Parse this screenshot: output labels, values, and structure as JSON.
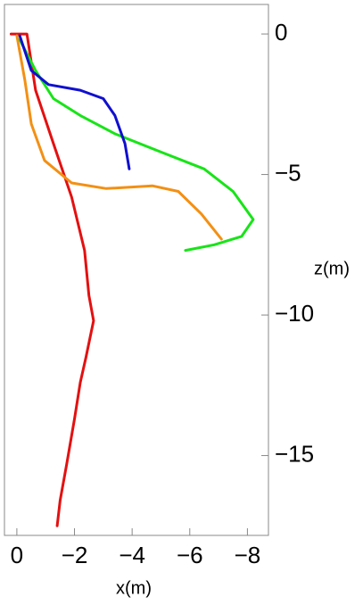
{
  "chart_data": {
    "type": "line",
    "x_label": "x(m)",
    "y_label": "z(m)",
    "xlim": [
      0.43,
      -8.73
    ],
    "ylim": [
      1.05,
      -17.84
    ],
    "xticks": [
      0,
      {
        "value": -2,
        "label": "−2"
      },
      {
        "value": -4,
        "label": "−4"
      },
      {
        "value": -6,
        "label": "−6"
      },
      {
        "value": -8,
        "label": "−8"
      }
    ],
    "yticks": [
      0,
      {
        "value": -5,
        "label": "−5"
      },
      {
        "value": -10,
        "label": "−10"
      },
      {
        "value": -15,
        "label": "−15"
      }
    ],
    "series": [
      {
        "color": "#e41010",
        "x": [
          0.2,
          -0.35,
          -0.65,
          -1.27,
          -1.9,
          -2.35,
          -2.5,
          -2.66,
          -2.4,
          -2.2,
          -2,
          -1.73,
          -1.5,
          -1.4
        ],
        "values": [
          0,
          0,
          -2,
          -3.9,
          -5.8,
          -7.7,
          -9.3,
          -10.2,
          -11.5,
          -12.4,
          -13.7,
          -15.3,
          -16.6,
          -17.5
        ]
      },
      {
        "color": "#f39014",
        "x": [
          0,
          -0.28,
          -0.5,
          -0.96,
          -1.9,
          -3.1,
          -4.7,
          -5.6,
          -6.4,
          -7.1
        ],
        "values": [
          -0.06,
          -1.65,
          -3.2,
          -4.5,
          -5.3,
          -5.5,
          -5.4,
          -5.6,
          -6.4,
          -7.3
        ]
      },
      {
        "color": "#18e418",
        "x": [
          -0.1,
          -0.65,
          -1.27,
          -2.2,
          -3.4,
          -5,
          -6.5,
          -7.5,
          -8.2,
          -7.8,
          -6.85,
          -5.85
        ],
        "values": [
          -0.2,
          -1.3,
          -2.3,
          -2.9,
          -3.55,
          -4.2,
          -4.8,
          -5.6,
          -6.6,
          -7.2,
          -7.5,
          -7.7
        ]
      },
      {
        "color": "#1010d0",
        "x": [
          -0.1,
          -0.5,
          -1.1,
          -2.2,
          -3,
          -3.4,
          -3.75,
          -3.9
        ],
        "values": [
          -0.06,
          -1.3,
          -1.8,
          -2,
          -2.3,
          -2.9,
          -3.9,
          -4.8
        ]
      }
    ]
  }
}
